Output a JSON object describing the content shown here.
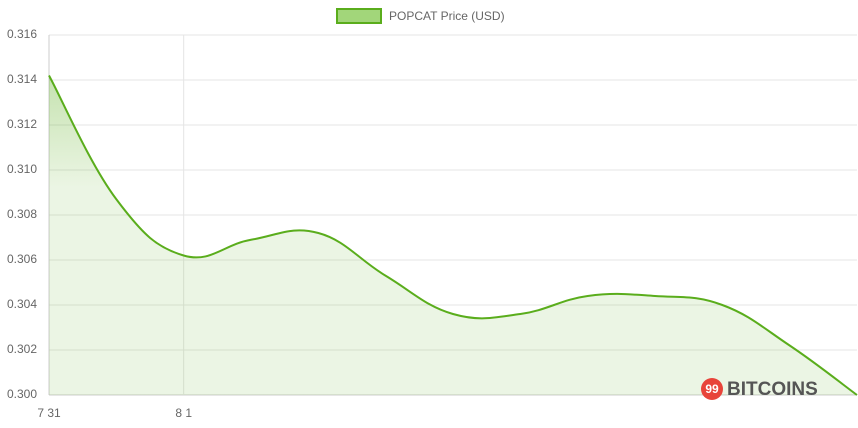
{
  "chart_data": {
    "type": "line",
    "categories": [
      "7 31",
      null,
      "8 1",
      null,
      null,
      null,
      null,
      null,
      null,
      null,
      null,
      null,
      null
    ],
    "series": [
      {
        "name": "POPCAT Price (USD)",
        "color": "#5aad1c",
        "values": [
          0.3142,
          0.3087,
          0.3062,
          0.3069,
          0.3072,
          0.3053,
          0.3036,
          0.3036,
          0.3044,
          0.3044,
          0.304,
          0.3022,
          0.3
        ]
      }
    ],
    "ylim": [
      0.3,
      0.316
    ],
    "yticks": [
      {
        "value": 0.3,
        "label": "0.300"
      },
      0.302,
      0.304,
      0.306,
      0.308,
      {
        "value": 0.31,
        "label": "0.310"
      },
      0.312,
      0.314,
      0.316
    ],
    "grid": true,
    "legend": "top",
    "watermark": {
      "badge": "99",
      "text": "BITCOINS"
    }
  }
}
